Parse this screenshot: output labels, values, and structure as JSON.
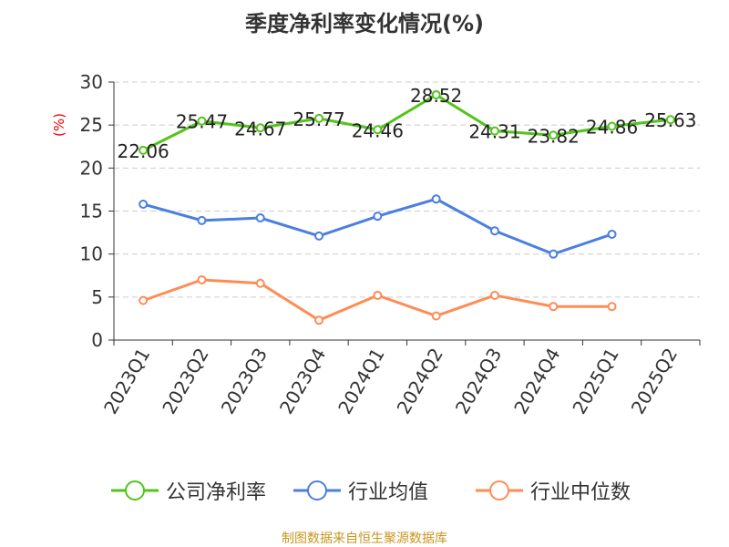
{
  "chart_data": {
    "type": "line",
    "title": "季度净利率变化情况(%)",
    "ylabel": "(%)",
    "ylim": [
      0,
      30
    ],
    "yticks": [
      0,
      5,
      10,
      15,
      20,
      25,
      30
    ],
    "grid": true,
    "legend_placement": "bottom",
    "categories": [
      "2023Q1",
      "2023Q2",
      "2023Q3",
      "2023Q4",
      "2024Q1",
      "2024Q2",
      "2024Q3",
      "2024Q4",
      "2025Q1",
      "2025Q2"
    ],
    "series": [
      {
        "name": "公司净利率",
        "color": "#52c41a",
        "values": [
          22.06,
          25.47,
          24.67,
          25.77,
          24.46,
          28.52,
          24.31,
          23.82,
          24.86,
          25.63
        ],
        "labels": true
      },
      {
        "name": "行业均值",
        "color": "#4a7fe0",
        "values": [
          15.8,
          13.9,
          14.2,
          12.1,
          14.4,
          16.4,
          12.7,
          10.0,
          12.3,
          null
        ]
      },
      {
        "name": "行业中位数",
        "color": "#ff8c55",
        "values": [
          4.6,
          7.0,
          6.6,
          2.3,
          5.2,
          2.8,
          5.2,
          3.9,
          3.9,
          null
        ]
      }
    ]
  },
  "source": "制图数据来自恒生聚源数据库"
}
